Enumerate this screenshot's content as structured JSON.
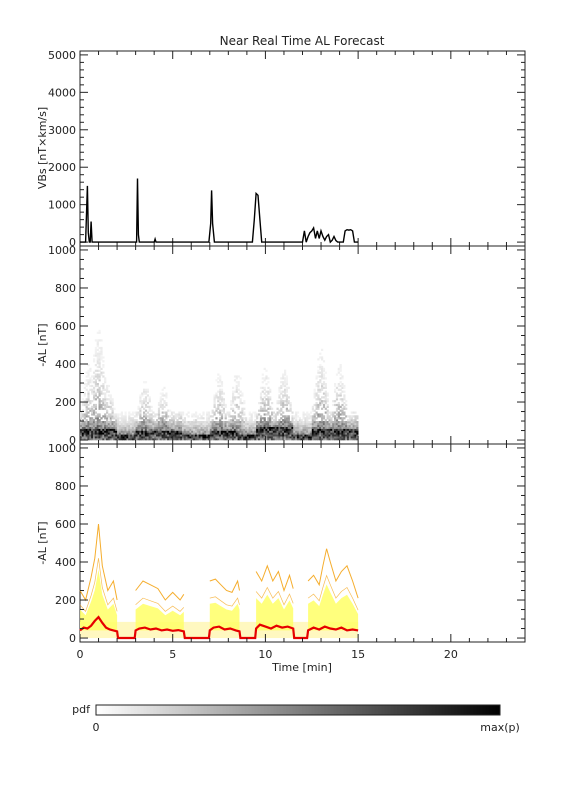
{
  "chart_data": [
    {
      "type": "line",
      "title": "Near Real Time AL Forecast",
      "ylabel": "VBs [nT×km/s]",
      "xlim": [
        0,
        24
      ],
      "ylim": [
        0,
        5000
      ],
      "yticks": [
        "0",
        "1000",
        "2000",
        "3000",
        "4000",
        "5000"
      ],
      "series": [
        {
          "x": [
            0,
            0.3,
            0.4,
            0.45,
            0.5,
            0.55,
            0.6,
            0.65,
            0.7,
            0.75,
            0.8,
            3.05,
            3.1,
            3.15,
            3.2,
            3.25,
            3.3,
            4.0,
            4.05,
            4.1,
            6.95,
            7.05,
            7.1,
            7.15,
            7.25,
            9.3,
            9.4,
            9.5,
            9.6,
            9.7,
            9.8,
            11.9,
            12.0,
            12.1,
            12.2,
            12.3,
            12.4,
            12.5,
            12.6,
            12.7,
            12.8,
            12.9,
            13.0,
            13.1,
            13.2,
            13.3,
            13.4,
            13.5,
            13.6,
            13.7,
            13.8,
            13.9,
            14.0,
            14.2,
            14.3,
            14.4,
            14.5,
            14.6,
            14.7,
            14.8,
            14.9,
            15.0
          ],
          "y": [
            0,
            0,
            1500,
            250,
            0,
            0,
            550,
            0,
            0,
            0,
            0,
            0,
            1700,
            200,
            0,
            0,
            0,
            0,
            80,
            0,
            0,
            500,
            1380,
            500,
            0,
            0,
            600,
            1300,
            1250,
            600,
            0,
            0,
            0,
            300,
            0,
            150,
            250,
            300,
            380,
            100,
            300,
            100,
            300,
            150,
            50,
            150,
            200,
            0,
            50,
            150,
            40,
            0,
            0,
            0,
            300,
            330,
            320,
            330,
            300,
            0,
            0,
            0
          ]
        }
      ]
    },
    {
      "type": "heatmap",
      "ylabel": "-AL [nT]",
      "xlim": [
        0,
        24
      ],
      "ylim": [
        0,
        1000
      ],
      "yticks": [
        "0",
        "200",
        "400",
        "600",
        "800",
        "1000"
      ],
      "time_bins_min": 0.1,
      "al_bins_nT": 10,
      "data_range_x": [
        0,
        15
      ],
      "typical_AL_by_time": [
        {
          "x": [
            0,
            2.0
          ],
          "y": [
            40,
            55
          ]
        },
        {
          "x": [
            3.0,
            5.5
          ],
          "y": [
            40,
            50
          ]
        },
        {
          "x": [
            7.0,
            8.5
          ],
          "y": [
            35,
            55
          ]
        },
        {
          "x": [
            9.5,
            11.5
          ],
          "y": [
            50,
            70
          ]
        },
        {
          "x": [
            12.5,
            15.0
          ],
          "y": [
            40,
            55
          ]
        }
      ],
      "peak_AL_envelope": {
        "x": [
          0.5,
          1.0,
          1.5,
          3.5,
          4.5,
          7.5,
          8.5,
          10.0,
          11.0,
          13.0,
          14.0
        ],
        "y": [
          400,
          600,
          300,
          320,
          280,
          350,
          370,
          380,
          370,
          480,
          400
        ]
      }
    },
    {
      "type": "line",
      "ylabel": "-AL [nT]",
      "xlabel": "Time [min]",
      "xlim": [
        0,
        24
      ],
      "ylim": [
        0,
        1000
      ],
      "yticks": [
        "0",
        "200",
        "400",
        "600",
        "800",
        "1000"
      ],
      "xticks": [
        "0",
        "5",
        "10",
        "15",
        "20"
      ],
      "series": [
        {
          "name": "",
          "color": "#e60000",
          "x": [
            0,
            0.2,
            0.4,
            0.6,
            0.8,
            1.0,
            1.2,
            1.4,
            1.6,
            1.8,
            2.0,
            2.05,
            2.95,
            3.0,
            3.2,
            3.5,
            3.8,
            4.1,
            4.4,
            4.7,
            5.0,
            5.3,
            5.6,
            5.65,
            6.95,
            7.0,
            7.2,
            7.5,
            7.8,
            8.1,
            8.4,
            8.6,
            8.65,
            9.45,
            9.5,
            9.7,
            10.0,
            10.3,
            10.6,
            10.9,
            11.2,
            11.5,
            11.55,
            12.25,
            12.3,
            12.6,
            12.9,
            13.2,
            13.5,
            13.8,
            14.1,
            14.4,
            14.7,
            15.0
          ],
          "y": [
            40,
            55,
            50,
            65,
            90,
            110,
            80,
            55,
            45,
            40,
            35,
            0,
            0,
            40,
            50,
            55,
            45,
            50,
            40,
            45,
            38,
            42,
            35,
            0,
            0,
            40,
            55,
            60,
            45,
            50,
            40,
            35,
            0,
            0,
            50,
            70,
            60,
            50,
            65,
            55,
            60,
            50,
            0,
            0,
            40,
            55,
            45,
            60,
            50,
            45,
            55,
            40,
            45,
            40
          ]
        },
        {
          "name": "",
          "color": "#f5ad2d",
          "x": [
            0,
            0.3,
            0.6,
            0.8,
            1.0,
            1.2,
            1.5,
            1.8,
            2.0,
            2.05,
            2.95,
            3.0,
            3.4,
            3.8,
            4.2,
            4.6,
            5.0,
            5.4,
            5.6,
            5.65,
            6.95,
            7.0,
            7.3,
            7.6,
            7.9,
            8.2,
            8.5,
            8.6,
            8.65,
            9.45,
            9.5,
            9.8,
            10.1,
            10.4,
            10.7,
            11.0,
            11.3,
            11.5,
            11.55,
            12.25,
            12.3,
            12.6,
            12.9,
            13.1,
            13.3,
            13.5,
            13.8,
            14.1,
            14.4,
            14.7,
            15.0
          ],
          "y": [
            250,
            200,
            320,
            420,
            600,
            380,
            250,
            300,
            200,
            0,
            0,
            250,
            300,
            280,
            260,
            200,
            240,
            200,
            230,
            0,
            0,
            300,
            310,
            280,
            250,
            240,
            300,
            250,
            0,
            0,
            350,
            300,
            380,
            300,
            350,
            250,
            330,
            260,
            0,
            0,
            300,
            330,
            280,
            380,
            470,
            400,
            300,
            350,
            380,
            300,
            210
          ]
        }
      ]
    }
  ],
  "colorbar": {
    "label": "pdf",
    "min_label": "0",
    "max_label": "max(p)"
  },
  "colors": {
    "axis": "#222222",
    "pdf_max": "#000000",
    "pdf_min": "#ffffff",
    "median_line": "#e60000",
    "envelope": "#f5ad2d",
    "band_fill": "#ffff66"
  }
}
